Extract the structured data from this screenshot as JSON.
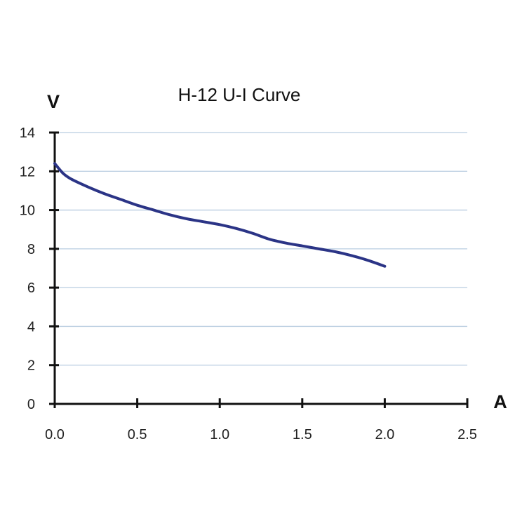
{
  "chart_data": {
    "type": "line",
    "title": "H-12 U-I Curve",
    "xlabel": "A",
    "ylabel": "V",
    "xlim": [
      0,
      2.5
    ],
    "ylim": [
      0,
      14
    ],
    "x_ticks": [
      "0.0",
      "0.5",
      "1.0",
      "1.5",
      "2.0",
      "2.5"
    ],
    "y_ticks": [
      "0",
      "2",
      "4",
      "6",
      "8",
      "10",
      "12",
      "14"
    ],
    "grid": "horizontal",
    "legend": "none",
    "series": [
      {
        "color": "#2b3486",
        "x": [
          0.0,
          0.05,
          0.1,
          0.2,
          0.3,
          0.4,
          0.5,
          0.6,
          0.7,
          0.8,
          0.9,
          1.0,
          1.1,
          1.2,
          1.3,
          1.4,
          1.5,
          1.6,
          1.7,
          1.8,
          1.9,
          2.0
        ],
        "y": [
          12.4,
          11.9,
          11.6,
          11.2,
          10.85,
          10.55,
          10.25,
          10.0,
          9.75,
          9.55,
          9.4,
          9.25,
          9.05,
          8.8,
          8.5,
          8.3,
          8.15,
          8.0,
          7.85,
          7.65,
          7.4,
          7.1
        ]
      }
    ],
    "colors": {
      "grid": "#b9cde0",
      "axis": "#111111"
    }
  }
}
